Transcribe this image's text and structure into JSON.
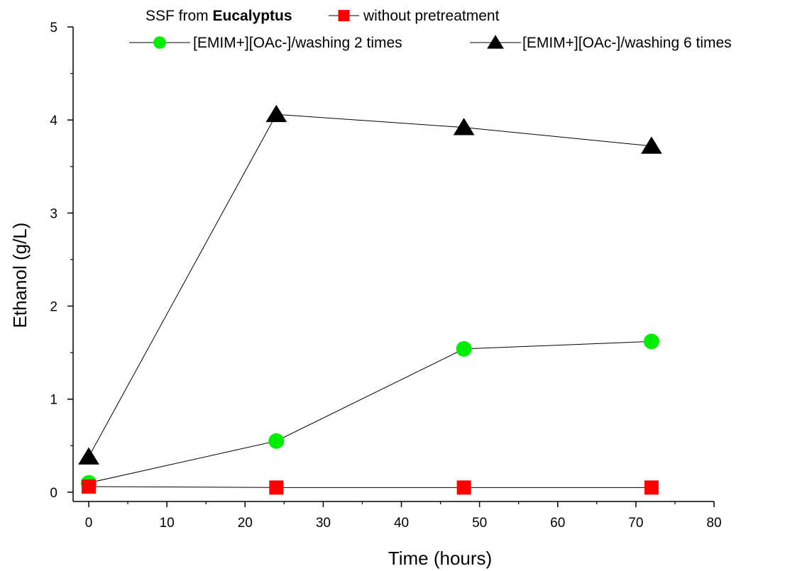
{
  "chart_data": {
    "type": "line",
    "title_prefix": "SSF from ",
    "title_bold": "Eucalyptus",
    "xlabel": "Time (hours)",
    "ylabel": "Ethanol (g/L)",
    "xlim": [
      -2,
      80
    ],
    "ylim": [
      -0.1,
      5
    ],
    "xticks": [
      0,
      10,
      20,
      30,
      40,
      50,
      60,
      70,
      80
    ],
    "yticks": [
      0,
      1,
      2,
      3,
      4,
      5
    ],
    "grid": false,
    "legend_position": "top",
    "series": [
      {
        "name": "without pretreatment",
        "marker": "square",
        "color": "#ff0000",
        "x": [
          0,
          24,
          48,
          72
        ],
        "y": [
          0.06,
          0.05,
          0.05,
          0.05
        ]
      },
      {
        "name": "[EMIM+][OAc-]/washing 2 times",
        "marker": "circle",
        "color": "#00ee00",
        "x": [
          0,
          24,
          48,
          72
        ],
        "y": [
          0.1,
          0.55,
          1.54,
          1.62
        ]
      },
      {
        "name": "[EMIM+][OAc-]/washing 6 times",
        "marker": "triangle",
        "color": "#000000",
        "x": [
          0,
          24,
          48,
          72
        ],
        "y": [
          0.38,
          4.06,
          3.92,
          3.72
        ]
      }
    ]
  }
}
